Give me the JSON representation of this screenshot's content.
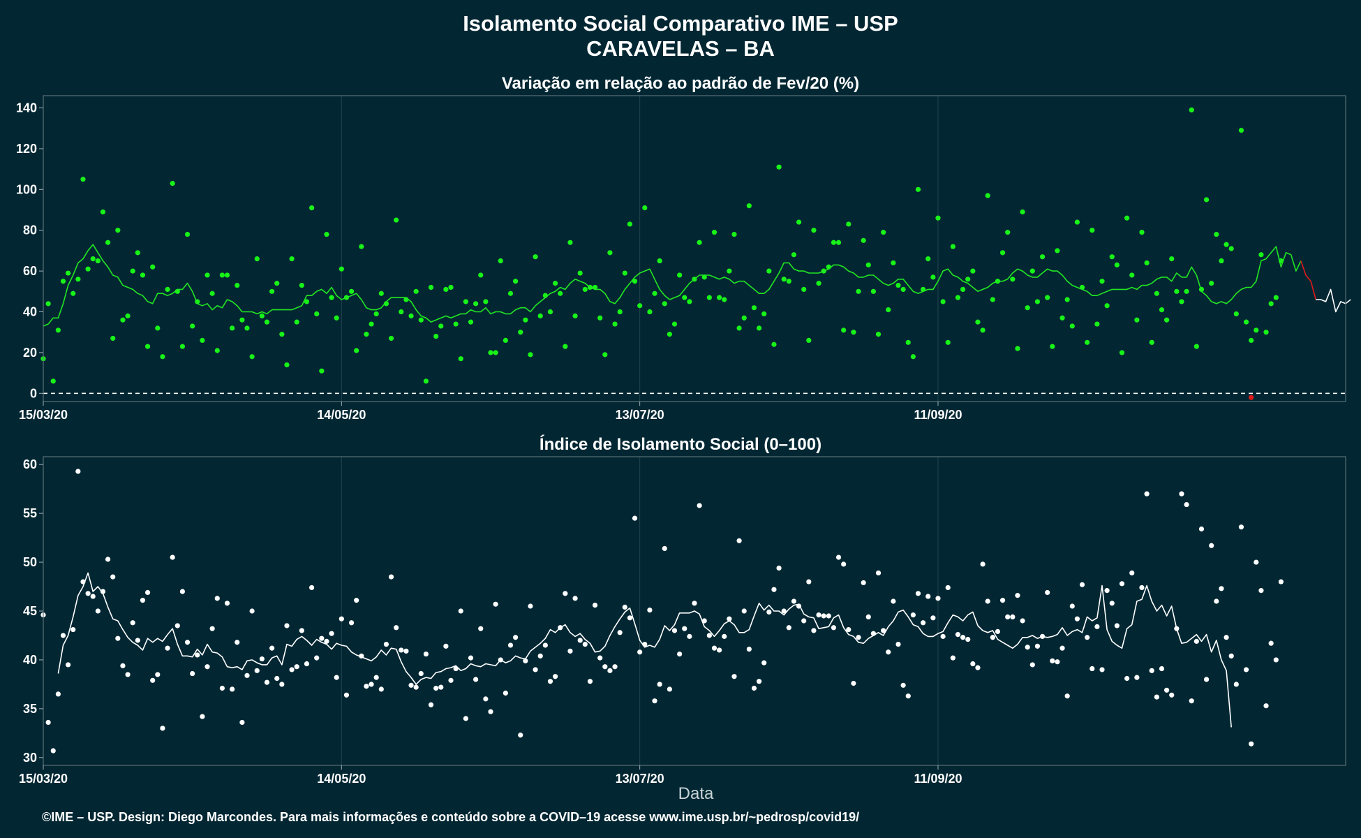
{
  "figure": {
    "title": "Isolamento Social Comparativo IME – USP",
    "subtitle": "CARAVELAS – BA",
    "xlabel": "Data",
    "footer": "©IME – USP. Design: Diego Marcondes. Para mais informações e conteúdo sobre a COVID–19 acesse www.ime.usp.br/~pedrosp/covid19/"
  },
  "colors": {
    "background": "#022733",
    "variation_points": "#18f418",
    "variation_line": "#22e622",
    "index_points": "#ffffff",
    "index_line": "#ffffff",
    "negative": "#e01818",
    "zero_line": "#ffffff"
  },
  "chart_data": [
    {
      "type": "scatter",
      "title": "Variação em relação ao padrão de Fev/20 (%)",
      "x_range": [
        "2020-03-15",
        "2020-12-02"
      ],
      "x_ticks": [
        "15/03/20",
        "14/05/20",
        "13/07/20",
        "11/09/20"
      ],
      "x_tick_dates": [
        "2020-03-15",
        "2020-05-14",
        "2020-07-13",
        "2020-09-11"
      ],
      "ylim": [
        -4,
        146
      ],
      "y_ticks": [
        0,
        20,
        40,
        60,
        80,
        100,
        120,
        140
      ],
      "reference_line": 0,
      "grid": true,
      "series": [
        {
          "kind": "points",
          "start_date": "2020-03-15",
          "values": [
            17,
            44,
            6,
            31,
            55,
            59,
            49,
            56,
            105,
            61,
            66,
            65,
            89,
            74,
            27,
            80,
            36,
            38,
            60,
            69,
            58,
            23,
            62,
            32,
            18,
            51,
            103,
            50,
            23,
            78,
            33,
            45,
            26,
            58,
            49,
            21,
            58,
            58,
            32,
            53,
            36,
            32,
            18,
            66,
            38,
            35,
            50,
            54,
            29,
            14,
            66,
            35,
            53,
            45,
            91,
            39,
            11,
            78,
            47,
            37,
            61,
            47,
            50,
            21,
            72,
            29,
            34,
            39,
            49,
            44,
            27,
            85,
            40,
            46,
            38,
            50,
            36,
            6,
            52,
            28,
            33,
            51,
            52,
            34,
            17,
            45,
            35,
            44,
            58,
            45,
            20,
            20,
            65,
            26,
            49,
            55,
            30,
            36,
            19,
            67,
            38,
            48,
            40,
            54,
            49,
            23,
            74,
            38,
            59,
            51,
            52,
            52,
            37,
            19,
            69,
            34,
            40,
            59,
            83,
            55,
            43,
            91,
            40,
            49,
            65,
            44,
            29,
            34,
            58,
            47,
            45,
            56,
            74,
            57,
            47,
            79,
            47,
            46,
            60,
            78,
            32,
            37,
            92,
            42,
            32,
            39,
            60,
            24,
            111,
            56,
            55,
            68,
            84,
            51,
            26,
            80,
            54,
            60,
            62,
            74,
            74,
            31,
            83,
            30,
            50,
            75,
            63,
            50,
            29,
            79,
            41,
            64,
            53,
            51,
            25,
            18,
            100,
            51,
            66,
            57,
            86,
            45,
            25,
            72,
            47,
            51,
            56,
            60,
            35,
            31,
            97,
            46,
            55,
            69,
            79,
            56,
            22,
            89,
            42,
            60,
            45,
            67,
            47,
            23,
            70,
            37,
            46,
            33,
            84,
            52,
            25,
            80,
            34,
            55,
            43,
            67,
            63,
            20,
            86,
            58,
            36,
            79,
            64,
            25,
            49,
            41,
            36,
            66,
            50,
            45,
            50,
            139,
            23,
            51,
            95,
            54,
            78,
            65,
            73,
            71,
            39,
            129,
            35,
            26,
            31,
            68,
            30,
            44,
            47,
            65
          ]
        },
        {
          "kind": "negative_point",
          "date": "2020-11-13",
          "value": -2
        },
        {
          "kind": "moving_average",
          "start_date": "2020-03-15",
          "values": [
            33,
            34,
            37,
            37,
            44,
            53,
            58,
            64,
            66,
            70,
            73,
            69,
            65,
            62,
            58,
            57,
            53,
            52,
            51,
            49,
            48,
            45,
            44,
            49,
            49,
            48,
            49,
            51,
            51,
            54,
            50,
            44,
            43,
            44,
            41,
            43,
            42,
            46,
            45,
            43,
            40,
            40,
            40,
            39,
            40,
            39,
            41,
            41,
            41,
            41,
            41,
            42,
            43,
            48,
            48,
            50,
            51,
            49,
            52,
            48,
            46,
            47,
            48,
            49,
            46,
            42,
            41,
            41,
            42,
            45,
            47,
            47,
            47,
            47,
            45,
            41,
            38,
            37,
            35,
            36,
            37,
            38,
            37,
            38,
            39,
            39,
            41,
            40,
            40,
            42,
            39,
            40,
            40,
            39,
            39,
            41,
            42,
            42,
            40,
            43,
            45,
            47,
            49,
            50,
            52,
            51,
            54,
            56,
            55,
            54,
            52,
            51,
            51,
            49,
            45,
            44,
            47,
            51,
            54,
            57,
            59,
            60,
            61,
            56,
            51,
            48,
            46,
            47,
            48,
            51,
            54,
            56,
            58,
            58,
            58,
            57,
            56,
            57,
            56,
            54,
            55,
            55,
            53,
            51,
            49,
            49,
            51,
            55,
            59,
            64,
            64,
            61,
            60,
            60,
            59,
            59,
            59,
            60,
            61,
            63,
            63,
            62,
            60,
            59,
            57,
            57,
            58,
            58,
            56,
            54,
            53,
            54,
            56,
            56,
            53,
            50,
            49,
            50,
            51,
            51,
            55,
            60,
            61,
            58,
            57,
            55,
            54,
            52,
            50,
            51,
            52,
            54,
            55,
            55,
            56,
            59,
            61,
            60,
            58,
            57,
            57,
            59,
            61,
            60,
            60,
            58,
            55,
            53,
            52,
            51,
            50,
            48,
            48,
            49,
            50,
            51,
            51,
            51,
            51,
            52,
            51,
            53,
            53,
            54,
            56,
            57,
            57,
            55,
            59,
            57,
            57,
            62,
            58,
            50,
            48,
            45,
            44,
            45,
            44,
            46,
            49,
            51,
            52,
            52,
            55,
            65,
            66,
            69,
            72,
            62,
            69,
            68,
            60,
            65,
            58,
            55,
            46,
            46,
            45,
            51,
            40,
            45,
            44,
            46
          ]
        }
      ]
    },
    {
      "type": "scatter",
      "title": "Índice de Isolamento Social (0–100)",
      "x_range": [
        "2020-03-15",
        "2020-12-02"
      ],
      "x_ticks": [
        "15/03/20",
        "14/05/20",
        "13/07/20",
        "11/09/20"
      ],
      "x_tick_dates": [
        "2020-03-15",
        "2020-05-14",
        "2020-07-13",
        "2020-09-11"
      ],
      "ylim": [
        29.2,
        60.8
      ],
      "y_ticks": [
        30,
        35,
        40,
        45,
        50,
        55,
        60
      ],
      "grid": true,
      "series": [
        {
          "kind": "points",
          "start_date": "2020-03-15",
          "values": [
            44.6,
            33.6,
            30.7,
            36.5,
            42.5,
            39.5,
            43.1,
            59.3,
            48.0,
            46.8,
            46.5,
            45.0,
            47.0,
            50.3,
            48.5,
            42.2,
            39.4,
            38.5,
            43.8,
            42.0,
            46.1,
            46.9,
            37.9,
            38.5,
            33.0,
            41.2,
            50.5,
            43.5,
            47.0,
            41.8,
            38.6,
            40.5,
            34.2,
            39.3,
            43.2,
            46.3,
            37.1,
            45.8,
            37.0,
            41.8,
            33.6,
            38.4,
            45.0,
            38.9,
            40.1,
            37.7,
            41.2,
            38.1,
            37.5,
            43.5,
            39.0,
            39.3,
            43.0,
            39.6,
            47.4,
            40.2,
            42.2,
            41.9,
            42.7,
            38.2,
            44.2,
            36.4,
            43.8,
            46.1,
            40.4,
            37.3,
            37.5,
            38.2,
            37.0,
            41.6,
            48.5,
            43.3,
            41.0,
            40.9,
            37.4,
            37.2,
            38.6,
            40.6,
            35.4,
            37.1,
            37.2,
            41.4,
            37.9,
            39.1,
            45.0,
            34.0,
            40.2,
            38.0,
            43.2,
            36.0,
            34.7,
            45.7,
            40.0,
            36.6,
            41.5,
            42.3,
            32.3,
            39.9,
            45.5,
            39.0,
            40.4,
            41.5,
            37.8,
            38.3,
            43.3,
            46.8,
            40.9,
            46.3,
            42.0,
            41.6,
            37.8,
            45.6,
            40.2,
            39.3,
            38.9,
            39.3,
            42.8,
            45.4,
            44.3,
            54.5,
            40.8,
            41.6,
            45.1,
            35.8,
            37.5,
            51.4,
            37.0,
            43.0,
            40.6,
            43.2,
            42.4,
            45.8,
            55.8,
            44.0,
            42.5,
            41.2,
            41.0,
            42.4,
            44.2,
            38.3,
            52.2,
            45.0,
            41.1,
            37.1,
            37.8,
            39.7,
            44.9,
            47.2,
            49.4,
            45.0,
            43.3,
            46.0,
            45.5,
            44.0,
            48.0,
            43.0,
            44.6,
            44.5,
            44.5,
            43.3,
            50.5,
            49.8,
            43.1,
            37.6,
            42.3,
            47.9,
            44.4,
            42.7,
            48.9,
            43.0,
            40.8,
            46.0,
            41.6,
            37.4,
            36.3,
            44.6,
            46.8,
            43.8,
            46.5,
            44.3,
            46.3,
            42.4,
            47.4,
            40.2,
            42.6,
            42.3,
            42.1,
            39.6,
            39.2,
            49.8,
            46.0,
            42.3,
            42.9,
            46.1,
            44.4,
            44.4,
            46.6,
            44.0,
            41.3,
            39.5,
            41.4,
            42.4,
            46.9,
            39.9,
            39.8,
            41.2,
            36.3,
            45.5,
            44.2,
            47.7,
            42.3,
            39.1,
            43.4,
            39.0,
            47.1,
            45.8,
            43.5,
            47.8,
            38.1,
            48.9,
            38.2,
            47.4,
            57.0,
            38.9,
            36.2,
            39.1,
            36.9,
            36.4,
            43.2,
            57.0,
            55.9,
            35.8,
            41.9,
            53.4,
            38.0,
            51.7,
            46.0,
            47.3,
            42.3,
            40.4,
            37.5,
            53.6,
            39.0,
            31.4,
            50.0,
            47.1,
            35.3,
            41.7,
            40.0,
            48.0
          ]
        },
        {
          "kind": "moving_average",
          "start_date": "2020-03-18",
          "values": [
            38.6,
            41.5,
            42.5,
            44.4,
            46.6,
            47.5,
            48.9,
            47.0,
            47.5,
            46.8,
            45.4,
            44.2,
            44.0,
            43.1,
            42.3,
            41.8,
            41.5,
            41.0,
            42.2,
            41.8,
            42.2,
            41.9,
            42.6,
            43.2,
            41.6,
            40.4,
            40.4,
            40.3,
            41.1,
            40.5,
            41.6,
            40.8,
            40.7,
            40.3,
            39.3,
            39.2,
            39.3,
            39.0,
            39.9,
            40.0,
            39.7,
            39.5,
            39.5,
            40.2,
            40.4,
            39.5,
            41.6,
            41.4,
            42.1,
            42.4,
            42.0,
            41.5,
            42.1,
            41.8,
            41.6,
            41.1,
            41.7,
            41.5,
            41.4,
            40.8,
            40.5,
            40.3,
            40.1,
            39.9,
            40.3,
            41.0,
            40.5,
            41.2,
            41.1,
            39.8,
            38.8,
            38.2,
            37.5,
            38.0,
            38.2,
            38.1,
            38.7,
            38.8,
            39.1,
            39.2,
            39.4,
            38.9,
            39.1,
            39.6,
            39.4,
            39.3,
            39.6,
            39.5,
            39.4,
            40.0,
            39.7,
            39.9,
            40.4,
            40.2,
            40.1,
            40.9,
            41.3,
            41.7,
            42.2,
            43.1,
            42.8,
            43.3,
            43.6,
            42.8,
            42.4,
            42.7,
            42.1,
            41.7,
            40.8,
            40.9,
            41.4,
            42.5,
            43.4,
            44.2,
            44.9,
            45.3,
            43.7,
            42.0,
            41.3,
            41.5,
            41.3,
            42.1,
            43.5,
            43.0,
            43.6,
            44.8,
            44.8,
            44.8,
            45.0,
            44.7,
            43.4,
            43.0,
            42.4,
            43.0,
            43.7,
            44.0,
            43.6,
            42.8,
            42.8,
            43.1,
            44.5,
            45.8,
            45.1,
            45.6,
            45.0,
            45.0,
            44.6,
            45.2,
            45.6,
            45.7,
            44.7,
            44.4,
            44.3,
            43.2,
            43.3,
            43.4,
            44.3,
            44.6,
            43.3,
            42.6,
            42.4,
            41.8,
            41.7,
            42.2,
            42.5,
            42.8,
            42.5,
            43.4,
            44.0,
            44.9,
            45.1,
            44.4,
            43.6,
            43.4,
            42.7,
            42.4,
            42.4,
            42.7,
            42.9,
            43.8,
            44.6,
            44.4,
            44.0,
            44.6,
            44.9,
            43.5,
            43.0,
            42.8,
            43.0,
            42.1,
            41.8,
            41.5,
            41.2,
            41.6,
            42.3,
            42.3,
            42.5,
            42.2,
            42.4,
            42.3,
            42.4,
            42.6,
            43.3,
            42.5,
            42.9,
            43.1,
            42.8,
            44.4,
            44.0,
            44.3,
            47.6,
            43.1,
            41.9,
            41.5,
            41.2,
            43.2,
            43.6,
            46.0,
            46.2,
            47.6,
            46.0,
            45.0,
            45.6,
            44.5,
            45.5,
            43.2,
            41.7,
            41.8,
            42.2,
            42.6,
            41.9,
            42.6,
            40.8,
            42.0,
            40.0,
            38.9,
            33.1
          ]
        }
      ]
    }
  ]
}
